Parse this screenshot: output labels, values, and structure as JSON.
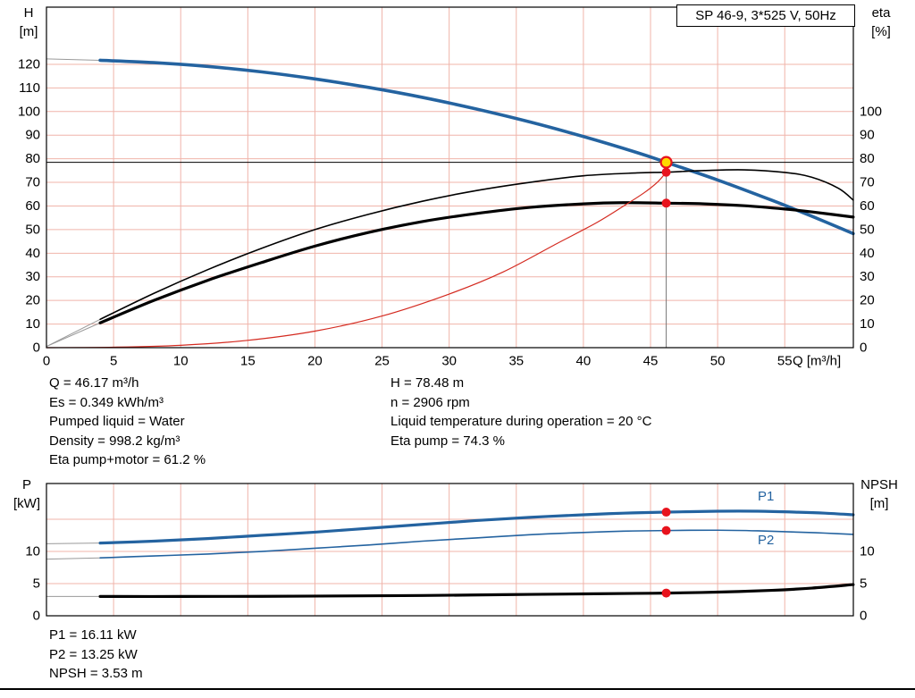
{
  "colors": {
    "blue": "#2463a0",
    "black": "#000000",
    "red": "#d42a20",
    "grid": "#f0b4aa",
    "lead": "#999999",
    "marker_red": "#e8131d",
    "marker_yellow": "#ffd900",
    "duty_line": "#777777"
  },
  "chart_data": [
    {
      "type": "line",
      "name": "hq-eta-chart",
      "title": "SP 46-9, 3*525 V, 50Hz",
      "x_label": "Q [m³/h]",
      "y_left_label": "H",
      "y_left_unit": "[m]",
      "y_right_label": "eta",
      "y_right_unit": "[%]",
      "xlim": [
        0,
        60.1
      ],
      "ylim_left": [
        0,
        144
      ],
      "ylim_right": [
        0,
        109
      ],
      "show_x_labels": true,
      "x_ticks": [
        0,
        5,
        10,
        15,
        20,
        25,
        30,
        35,
        40,
        45,
        50,
        55
      ],
      "x_grid": [
        5,
        10,
        15,
        20,
        25,
        30,
        35,
        40,
        45,
        50,
        55
      ],
      "y_left_ticks": [
        0,
        10,
        20,
        30,
        40,
        50,
        60,
        70,
        80,
        90,
        100,
        110,
        120
      ],
      "y_right_ticks": [
        0,
        10,
        20,
        30,
        40,
        50,
        60,
        70,
        80,
        90,
        100
      ],
      "y_grid": [
        10,
        20,
        30,
        40,
        50,
        60,
        70,
        80,
        90,
        100,
        110,
        120
      ],
      "duty": {
        "q": 46.17,
        "h": 78.48
      },
      "series": [
        {
          "name": "pump-curve-H",
          "color": "blue",
          "width": 3.6,
          "lead": [
            0,
            122.3
          ],
          "points": [
            [
              4,
              121.7
            ],
            [
              8,
              120.7
            ],
            [
              12,
              119.1
            ],
            [
              16,
              116.8
            ],
            [
              20,
              113.8
            ],
            [
              24,
              110.2
            ],
            [
              28,
              106.0
            ],
            [
              32,
              101.1
            ],
            [
              36,
              95.6
            ],
            [
              40,
              89.4
            ],
            [
              44,
              82.6
            ],
            [
              46.17,
              78.48
            ],
            [
              50,
              71.0
            ],
            [
              54,
              62.5
            ],
            [
              57,
              55.7
            ],
            [
              60.1,
              48.3
            ]
          ]
        },
        {
          "name": "eta-pump",
          "color": "black",
          "width": 1.6,
          "lead": [
            0,
            0.5
          ],
          "points": [
            [
              4,
              12
            ],
            [
              8,
              23
            ],
            [
              12,
              33
            ],
            [
              16,
              42
            ],
            [
              20,
              50
            ],
            [
              24,
              56.5
            ],
            [
              28,
              62
            ],
            [
              32,
              66.5
            ],
            [
              36,
              70
            ],
            [
              40,
              72.8
            ],
            [
              44,
              74.0
            ],
            [
              46.17,
              74.3
            ],
            [
              49,
              75.0
            ],
            [
              52,
              75.3
            ],
            [
              55,
              74.2
            ],
            [
              57,
              72.2
            ],
            [
              59,
              67.5
            ],
            [
              60.1,
              62.5
            ]
          ]
        },
        {
          "name": "eta-pump-motor",
          "color": "black",
          "width": 3.2,
          "lead": [
            0,
            0.5
          ],
          "points": [
            [
              4,
              10.5
            ],
            [
              8,
              20
            ],
            [
              12,
              28.5
            ],
            [
              16,
              36
            ],
            [
              20,
              43
            ],
            [
              24,
              48.8
            ],
            [
              28,
              53.4
            ],
            [
              32,
              56.8
            ],
            [
              36,
              59.4
            ],
            [
              40,
              60.9
            ],
            [
              43,
              61.4
            ],
            [
              46.17,
              61.2
            ],
            [
              49,
              60.9
            ],
            [
              52,
              60.1
            ],
            [
              55,
              58.7
            ],
            [
              57,
              57.5
            ],
            [
              60.1,
              55.3
            ]
          ]
        },
        {
          "name": "system-curve",
          "color": "red",
          "width": 1.2,
          "points": [
            [
              0,
              0
            ],
            [
              5,
              0.2
            ],
            [
              10,
              1.0
            ],
            [
              15,
              3.1
            ],
            [
              20,
              7.0
            ],
            [
              25,
              13.4
            ],
            [
              30,
              22.7
            ],
            [
              34,
              32.0
            ],
            [
              38,
              44.0
            ],
            [
              41,
              53.0
            ],
            [
              43,
              60.0
            ],
            [
              44.5,
              65.5
            ],
            [
              45.5,
              70.0
            ],
            [
              46.17,
              74.3
            ]
          ]
        }
      ],
      "markers": [
        {
          "type": "duty",
          "q": 46.17,
          "v": 78.48
        },
        {
          "type": "point",
          "q": 46.17,
          "v": 74.3
        },
        {
          "type": "point",
          "q": 46.17,
          "v": 61.2
        }
      ]
    },
    {
      "type": "line",
      "name": "power-npsh-chart",
      "y_left_label": "P",
      "y_left_unit": "[kW]",
      "y_right_label": "NPSH",
      "y_right_unit": "[m]",
      "xlim": [
        0,
        60.1
      ],
      "ylim": [
        0,
        20.6
      ],
      "show_x_labels": false,
      "x_grid": [
        5,
        10,
        15,
        20,
        25,
        30,
        35,
        40,
        45,
        50,
        55
      ],
      "y_left_ticks": [
        0,
        5,
        10
      ],
      "y_right_ticks": [
        0,
        5,
        10
      ],
      "y_grid": [
        5,
        10,
        15
      ],
      "series": [
        {
          "name": "P1",
          "color": "blue",
          "width": 3.2,
          "lead": [
            0,
            11.2
          ],
          "points": [
            [
              4,
              11.3
            ],
            [
              8,
              11.6
            ],
            [
              12,
              12.0
            ],
            [
              16,
              12.5
            ],
            [
              20,
              13.0
            ],
            [
              24,
              13.6
            ],
            [
              28,
              14.2
            ],
            [
              32,
              14.8
            ],
            [
              36,
              15.3
            ],
            [
              40,
              15.7
            ],
            [
              43,
              15.95
            ],
            [
              46.17,
              16.11
            ],
            [
              50,
              16.25
            ],
            [
              53,
              16.25
            ],
            [
              56,
              16.1
            ],
            [
              58,
              15.95
            ],
            [
              60.1,
              15.7
            ]
          ]
        },
        {
          "name": "P2",
          "color": "blue",
          "width": 1.6,
          "lead": [
            0,
            8.8
          ],
          "points": [
            [
              4,
              9.0
            ],
            [
              8,
              9.3
            ],
            [
              12,
              9.6
            ],
            [
              16,
              10.0
            ],
            [
              20,
              10.5
            ],
            [
              24,
              11.0
            ],
            [
              28,
              11.6
            ],
            [
              32,
              12.1
            ],
            [
              36,
              12.6
            ],
            [
              40,
              12.95
            ],
            [
              43,
              13.15
            ],
            [
              46.17,
              13.25
            ],
            [
              50,
              13.3
            ],
            [
              53,
              13.2
            ],
            [
              56,
              13.0
            ],
            [
              58,
              12.85
            ],
            [
              60.1,
              12.65
            ]
          ]
        },
        {
          "name": "NPSH",
          "color": "black",
          "width": 3.2,
          "lead": [
            0,
            3.0
          ],
          "points": [
            [
              4,
              3.0
            ],
            [
              10,
              3.0
            ],
            [
              16,
              3.02
            ],
            [
              22,
              3.08
            ],
            [
              28,
              3.15
            ],
            [
              34,
              3.28
            ],
            [
              40,
              3.4
            ],
            [
              44,
              3.48
            ],
            [
              46.17,
              3.53
            ],
            [
              50,
              3.68
            ],
            [
              54,
              3.95
            ],
            [
              57,
              4.3
            ],
            [
              60.1,
              4.85
            ]
          ]
        }
      ],
      "markers": [
        {
          "type": "point",
          "q": 46.17,
          "v": 16.11
        },
        {
          "type": "point",
          "q": 46.17,
          "v": 13.25
        },
        {
          "type": "point",
          "q": 46.17,
          "v": 3.53
        }
      ]
    }
  ],
  "annotations": {
    "top_left": [
      "Q = 46.17 m³/h",
      "Es = 0.349 kWh/m³",
      "Pumped liquid = Water",
      "Density = 998.2 kg/m³",
      "Eta pump+motor = 61.2 %"
    ],
    "top_right": [
      "H = 78.48 m",
      "n = 2906 rpm",
      "Liquid temperature during operation = 20 °C",
      "Eta pump = 74.3 %"
    ],
    "bottom": [
      "P1 = 16.11 kW",
      "P2 = 13.25 kW",
      "NPSH = 3.53 m"
    ]
  }
}
